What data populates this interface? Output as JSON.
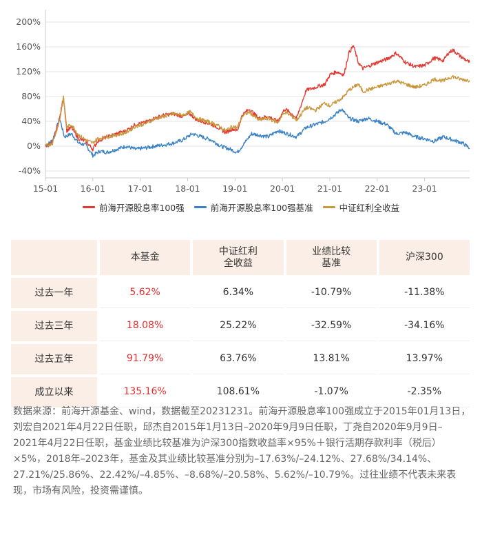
{
  "chart_data": {
    "type": "line",
    "x_ticks": [
      "15-01",
      "16-01",
      "17-01",
      "18-01",
      "19-01",
      "20-01",
      "21-01",
      "22-01",
      "23-01"
    ],
    "x_range": [
      2015.0,
      2023.95
    ],
    "ylim": [
      -40,
      200
    ],
    "y_ticks": [
      -40,
      0,
      40,
      80,
      120,
      160,
      200
    ],
    "y_tick_labels": [
      "-40%",
      "0%",
      "40%",
      "80%",
      "120%",
      "160%",
      "200%"
    ],
    "series": [
      {
        "name": "前海开源股息率100强",
        "color": "#e23a32",
        "x": [
          2015.0,
          2015.15,
          2015.3,
          2015.38,
          2015.45,
          2015.55,
          2015.7,
          2015.85,
          2016.0,
          2016.1,
          2016.3,
          2016.5,
          2016.7,
          2016.9,
          2017.1,
          2017.3,
          2017.5,
          2017.7,
          2017.9,
          2018.05,
          2018.2,
          2018.4,
          2018.6,
          2018.8,
          2018.95,
          2019.05,
          2019.15,
          2019.3,
          2019.5,
          2019.7,
          2019.9,
          2020.05,
          2020.2,
          2020.3,
          2020.5,
          2020.7,
          2020.9,
          2021.0,
          2021.15,
          2021.3,
          2021.4,
          2021.5,
          2021.6,
          2021.7,
          2021.85,
          2022.0,
          2022.2,
          2022.4,
          2022.6,
          2022.8,
          2023.0,
          2023.2,
          2023.4,
          2023.5,
          2023.6,
          2023.75,
          2023.95
        ],
        "y": [
          0,
          5,
          45,
          80,
          25,
          30,
          12,
          8,
          -5,
          8,
          15,
          20,
          25,
          35,
          38,
          45,
          50,
          52,
          48,
          52,
          42,
          38,
          32,
          22,
          28,
          25,
          50,
          60,
          45,
          48,
          40,
          60,
          52,
          45,
          90,
          95,
          100,
          115,
          120,
          115,
          150,
          162,
          135,
          125,
          130,
          135,
          140,
          150,
          135,
          128,
          130,
          142,
          138,
          150,
          155,
          145,
          135
        ]
      },
      {
        "name": "前海开源股息率100强基准",
        "color": "#3b82c4",
        "x": [
          2015.0,
          2015.15,
          2015.3,
          2015.4,
          2015.55,
          2015.7,
          2015.85,
          2016.0,
          2016.15,
          2016.3,
          2016.5,
          2016.7,
          2016.9,
          2017.1,
          2017.3,
          2017.5,
          2017.7,
          2017.9,
          2018.1,
          2018.3,
          2018.5,
          2018.7,
          2018.9,
          2019.05,
          2019.2,
          2019.35,
          2019.5,
          2019.7,
          2019.9,
          2020.1,
          2020.3,
          2020.5,
          2020.7,
          2020.9,
          2021.0,
          2021.1,
          2021.25,
          2021.4,
          2021.6,
          2021.8,
          2022.0,
          2022.2,
          2022.4,
          2022.6,
          2022.8,
          2023.0,
          2023.2,
          2023.4,
          2023.6,
          2023.8,
          2023.95
        ],
        "y": [
          0,
          10,
          45,
          15,
          20,
          5,
          2,
          -15,
          -8,
          -10,
          -5,
          0,
          -5,
          -3,
          0,
          2,
          5,
          10,
          20,
          15,
          10,
          0,
          -5,
          -10,
          5,
          20,
          18,
          15,
          25,
          20,
          15,
          30,
          35,
          40,
          45,
          50,
          60,
          45,
          40,
          45,
          40,
          35,
          20,
          22,
          15,
          12,
          8,
          15,
          10,
          5,
          -3
        ]
      },
      {
        "name": "中证红利全收益",
        "color": "#c9973d",
        "x": [
          2015.0,
          2015.15,
          2015.3,
          2015.38,
          2015.45,
          2015.55,
          2015.7,
          2015.85,
          2016.0,
          2016.1,
          2016.3,
          2016.5,
          2016.7,
          2016.9,
          2017.1,
          2017.3,
          2017.5,
          2017.7,
          2017.9,
          2018.05,
          2018.2,
          2018.4,
          2018.6,
          2018.8,
          2018.95,
          2019.05,
          2019.15,
          2019.3,
          2019.5,
          2019.7,
          2019.9,
          2020.05,
          2020.2,
          2020.3,
          2020.5,
          2020.7,
          2020.9,
          2021.0,
          2021.15,
          2021.3,
          2021.4,
          2021.5,
          2021.6,
          2021.7,
          2021.85,
          2022.0,
          2022.2,
          2022.4,
          2022.6,
          2022.8,
          2023.0,
          2023.2,
          2023.4,
          2023.5,
          2023.6,
          2023.75,
          2023.95
        ],
        "y": [
          0,
          5,
          42,
          78,
          30,
          35,
          18,
          10,
          5,
          12,
          15,
          18,
          22,
          32,
          36,
          44,
          48,
          52,
          50,
          55,
          45,
          40,
          35,
          25,
          32,
          30,
          48,
          55,
          42,
          45,
          38,
          55,
          48,
          42,
          62,
          58,
          70,
          65,
          72,
          80,
          90,
          95,
          100,
          88,
          92,
          95,
          100,
          105,
          100,
          95,
          98,
          108,
          105,
          110,
          112,
          108,
          106
        ]
      }
    ]
  },
  "table": {
    "headers": [
      "",
      "本基金",
      "中证红利\n全收益",
      "业绩比较\n基准",
      "沪深300"
    ],
    "rows": [
      {
        "label": "过去一年",
        "fund": "5.62%",
        "div": "6.34%",
        "bench": "-10.79%",
        "hs300": "-11.38%"
      },
      {
        "label": "过去三年",
        "fund": "18.08%",
        "div": "25.22%",
        "bench": "-32.59%",
        "hs300": "-34.16%"
      },
      {
        "label": "过去五年",
        "fund": "91.79%",
        "div": "63.76%",
        "bench": "13.81%",
        "hs300": "13.97%"
      },
      {
        "label": "成立以来",
        "fund": "135.16%",
        "div": "108.61%",
        "bench": "-1.07%",
        "hs300": "-2.35%"
      }
    ]
  },
  "note": "数据来源：前海开源基金、wind，数据截至20231231。前海开源股息率100强成立于2015年01月13日，刘宏自2021年4月22日任职，邱杰自2015年1月13日–2020年9月9日任职，丁尧自2020年9月9日–　2021年4月22日任职，基金业绩比较基准为沪深300指数收益率×95%＋银行活期存款利率（税后）×5%，2018年–2023年，基金及其业绩比较基准分别为–17.63%/–24.12%、27.68%/34.14%、27.21%/25.86%、22.42%/–4.85%、–8.68%/–20.58%、5.62%/–10.79%。过往业绩不代表未来表现，市场有风险，投资需谨慎。"
}
